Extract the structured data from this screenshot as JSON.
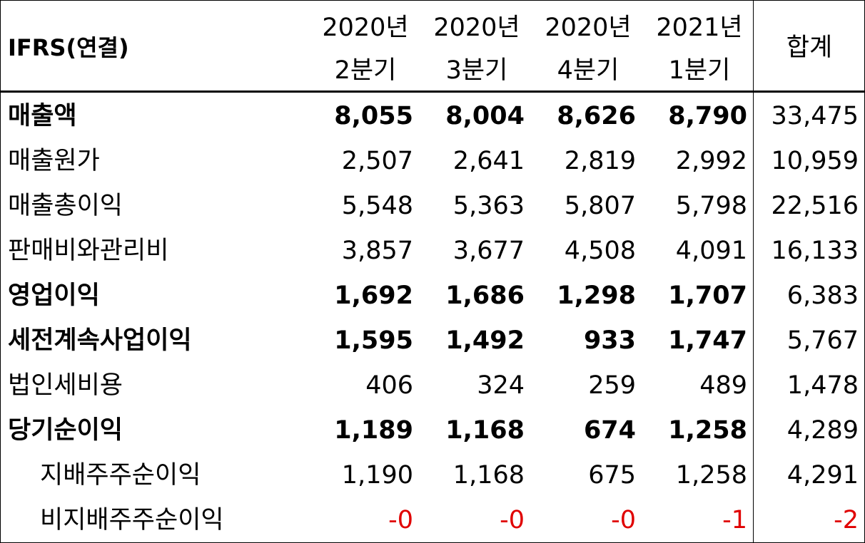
{
  "table": {
    "corner": "IFRS(연결)",
    "columns": [
      {
        "year": "2020년",
        "quarter": "2분기"
      },
      {
        "year": "2020년",
        "quarter": "3분기"
      },
      {
        "year": "2020년",
        "quarter": "4분기"
      },
      {
        "year": "2021년",
        "quarter": "1분기"
      }
    ],
    "total_header": "합계",
    "rows": [
      {
        "label": "매출액",
        "bold": true,
        "values": [
          "8,055",
          "8,004",
          "8,626",
          "8,790"
        ],
        "total": "33,475"
      },
      {
        "label": "매출원가",
        "values": [
          "2,507",
          "2,641",
          "2,819",
          "2,992"
        ],
        "total": "10,959"
      },
      {
        "label": "매출총이익",
        "values": [
          "5,548",
          "5,363",
          "5,807",
          "5,798"
        ],
        "total": "22,516"
      },
      {
        "label": "판매비와관리비",
        "values": [
          "3,857",
          "3,677",
          "4,508",
          "4,091"
        ],
        "total": "16,133"
      },
      {
        "label": "영업이익",
        "bold": true,
        "values": [
          "1,692",
          "1,686",
          "1,298",
          "1,707"
        ],
        "total": "6,383"
      },
      {
        "label": "세전계속사업이익",
        "bold": true,
        "values": [
          "1,595",
          "1,492",
          "933",
          "1,747"
        ],
        "total": "5,767"
      },
      {
        "label": "법인세비용",
        "values": [
          "406",
          "324",
          "259",
          "489"
        ],
        "total": "1,478"
      },
      {
        "label": "당기순이익",
        "bold": true,
        "values": [
          "1,189",
          "1,168",
          "674",
          "1,258"
        ],
        "total": "4,289"
      },
      {
        "label": "지배주주순이익",
        "indent": true,
        "values": [
          "1,190",
          "1,168",
          "675",
          "1,258"
        ],
        "total": "4,291"
      },
      {
        "label": "비지배주주순이익",
        "indent": true,
        "values": [
          "-0",
          "-0",
          "-0",
          "-1"
        ],
        "total": "-2"
      }
    ]
  }
}
